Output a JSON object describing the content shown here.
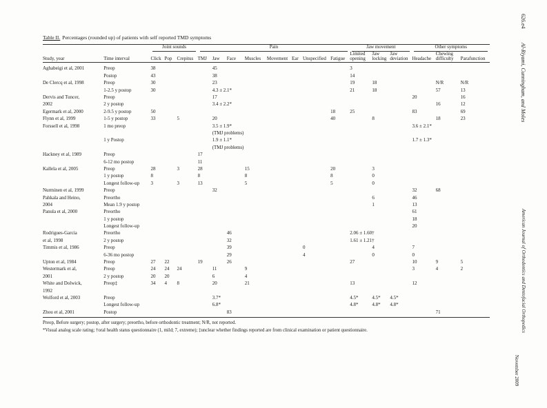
{
  "page": {
    "table_label": "Table II.",
    "table_caption": "Percentages (rounded up) of patients with self reported TMD symptoms"
  },
  "running_head": {
    "page_number": "626.e4",
    "authors": "Al-Riyami, Cunningham, and Moles"
  },
  "running_foot": {
    "journal": "American Journal of Orthodontics and Dentofacial Orthopedics",
    "issue": "November 2009"
  },
  "table": {
    "column_groups": [
      {
        "label": "Joint sounds",
        "span": 3
      },
      {
        "label": "Pain",
        "span": 8
      },
      {
        "label": "Jaw movement",
        "span": 3
      },
      {
        "label": "Other symptoms",
        "span": 3
      }
    ],
    "columns": [
      "Study, year",
      "Time interval",
      "Click",
      "Pop",
      "Crepitus",
      "TMJ",
      "Jaw",
      "Face",
      "Muscles",
      "Movement",
      "Ear",
      "Unspecified",
      "Fatigue",
      "Limited opening",
      "Jaw locking",
      "Jaw deviation",
      "Headache",
      "Chewing difficulty",
      "Parafunction"
    ],
    "rows": [
      {
        "study": "Aghabeigi et al, 2001",
        "indent": false,
        "time": "Preop",
        "cells": [
          "38",
          "",
          "",
          "",
          "45",
          "",
          "",
          "",
          "",
          "",
          "",
          "3",
          "",
          "",
          "",
          "",
          ""
        ]
      },
      {
        "study": "",
        "indent": false,
        "time": "Postop",
        "cells": [
          "43",
          "",
          "",
          "",
          "38",
          "",
          "",
          "",
          "",
          "",
          "",
          "14",
          "",
          "",
          "",
          "",
          ""
        ]
      },
      {
        "study": "De Clercq et al, 1998",
        "indent": false,
        "time": "Preop",
        "cells": [
          "30",
          "",
          "",
          "",
          "23",
          "",
          "",
          "",
          "",
          "",
          "",
          "19",
          "18",
          "",
          "",
          "N/R",
          "N/R"
        ]
      },
      {
        "study": "",
        "indent": false,
        "time": "1-2.5 y postop",
        "cells": [
          "30",
          "",
          "",
          "",
          "4.3 ± 2.1*",
          "",
          "",
          "",
          "",
          "",
          "",
          "21",
          "18",
          "",
          "",
          "57",
          "13"
        ]
      },
      {
        "study": "Dervis and Tuncer,",
        "indent": false,
        "time": "Preop",
        "cells": [
          "",
          "",
          "",
          "",
          "17",
          "",
          "",
          "",
          "",
          "",
          "",
          "",
          "",
          "",
          "20",
          "",
          "16"
        ]
      },
      {
        "study": "2002",
        "indent": true,
        "time": "2 y postop",
        "cells": [
          "",
          "",
          "",
          "",
          "3.4 ± 2.2*",
          "",
          "",
          "",
          "",
          "",
          "",
          "",
          "",
          "",
          "",
          "16",
          "12"
        ]
      },
      {
        "study": "Egermark et al, 2000",
        "indent": false,
        "time": "2-9.5 y postop",
        "cells": [
          "50",
          "",
          "",
          "",
          "",
          "",
          "",
          "",
          "",
          "",
          "18",
          "25",
          "",
          "",
          "83",
          "",
          "69"
        ]
      },
      {
        "study": "Flynn et al, 1999",
        "indent": false,
        "time": "1-5 y postop",
        "cells": [
          "33",
          "",
          "5",
          "",
          "20",
          "",
          "",
          "",
          "",
          "",
          "40",
          "",
          "8",
          "",
          "",
          "18",
          "23"
        ]
      },
      {
        "study": "Forssell et al, 1998",
        "indent": false,
        "time": "1 mo preop",
        "cells": [
          "",
          "",
          "",
          "",
          "3.5 ± 1.9*",
          "",
          "",
          "",
          "",
          "",
          "",
          "",
          "",
          "",
          "3.6 ± 2.1*",
          "",
          ""
        ]
      },
      {
        "study": "",
        "indent": false,
        "time": "",
        "cells": [
          "",
          "",
          "",
          "",
          "(TMJ problems)",
          "",
          "",
          "",
          "",
          "",
          "",
          "",
          "",
          "",
          "",
          "",
          ""
        ]
      },
      {
        "study": "",
        "indent": false,
        "time": "1 y Postop",
        "cells": [
          "",
          "",
          "",
          "",
          "1.9 ± 1.1*",
          "",
          "",
          "",
          "",
          "",
          "",
          "",
          "",
          "",
          "1.7 ± 1.3*",
          "",
          ""
        ]
      },
      {
        "study": "",
        "indent": false,
        "time": "",
        "cells": [
          "",
          "",
          "",
          "",
          "(TMJ problems)",
          "",
          "",
          "",
          "",
          "",
          "",
          "",
          "",
          "",
          "",
          "",
          ""
        ]
      },
      {
        "study": "Hackney et al, 1989",
        "indent": false,
        "time": "Preop",
        "cells": [
          "",
          "",
          "",
          "17",
          "",
          "",
          "",
          "",
          "",
          "",
          "",
          "",
          "",
          "",
          "",
          "",
          ""
        ]
      },
      {
        "study": "",
        "indent": false,
        "time": "6-12 mo postop",
        "cells": [
          "",
          "",
          "",
          "11",
          "",
          "",
          "",
          "",
          "",
          "",
          "",
          "",
          "",
          "",
          "",
          "",
          ""
        ]
      },
      {
        "study": "Kallela et al, 2005",
        "indent": false,
        "time": "Preop",
        "cells": [
          "28",
          "",
          "3",
          "28",
          "",
          "",
          "15",
          "",
          "",
          "",
          "20",
          "",
          "3",
          "",
          "",
          "",
          ""
        ]
      },
      {
        "study": "",
        "indent": false,
        "time": "1 y postop",
        "cells": [
          "8",
          "",
          "",
          "8",
          "",
          "",
          "8",
          "",
          "",
          "",
          "8",
          "",
          "0",
          "",
          "",
          "",
          ""
        ]
      },
      {
        "study": "",
        "indent": false,
        "time": "Longest follow-up",
        "cells": [
          "3",
          "",
          "3",
          "13",
          "",
          "",
          "5",
          "",
          "",
          "",
          "5",
          "",
          "0",
          "",
          "",
          "",
          ""
        ]
      },
      {
        "study": "Nurminen et al, 1999",
        "indent": false,
        "time": "Preop",
        "cells": [
          "",
          "",
          "",
          "",
          "32",
          "",
          "",
          "",
          "",
          "",
          "",
          "",
          "",
          "",
          "32",
          "68",
          ""
        ]
      },
      {
        "study": "Pahkala and Heino,",
        "indent": false,
        "time": "Preortho",
        "cells": [
          "",
          "",
          "",
          "",
          "",
          "",
          "",
          "",
          "",
          "",
          "",
          "",
          "6",
          "",
          "46",
          "",
          ""
        ]
      },
      {
        "study": "2004",
        "indent": true,
        "time": "Mean 1.9 y postop",
        "cells": [
          "",
          "",
          "",
          "",
          "",
          "",
          "",
          "",
          "",
          "",
          "",
          "",
          "1",
          "",
          "13",
          "",
          ""
        ]
      },
      {
        "study": "Panula et al, 2000",
        "indent": false,
        "time": "Preortho",
        "cells": [
          "",
          "",
          "",
          "",
          "",
          "",
          "",
          "",
          "",
          "",
          "",
          "",
          "",
          "",
          "61",
          "",
          ""
        ]
      },
      {
        "study": "",
        "indent": false,
        "time": "1 y postop",
        "cells": [
          "",
          "",
          "",
          "",
          "",
          "",
          "",
          "",
          "",
          "",
          "",
          "",
          "",
          "",
          "18",
          "",
          ""
        ]
      },
      {
        "study": "",
        "indent": false,
        "time": "Longest follow-up",
        "cells": [
          "",
          "",
          "",
          "",
          "",
          "",
          "",
          "",
          "",
          "",
          "",
          "",
          "",
          "",
          "20",
          "",
          ""
        ]
      },
      {
        "study": "Rodrigues-Garcia",
        "indent": false,
        "time": "Preortho",
        "cells": [
          "",
          "",
          "",
          "",
          "",
          "46",
          "",
          "",
          "",
          "",
          "",
          "2.06 ± 1.60†",
          "",
          "",
          "",
          "",
          ""
        ]
      },
      {
        "study": "et al, 1998",
        "indent": true,
        "time": "2 y postop",
        "cells": [
          "",
          "",
          "",
          "",
          "",
          "32",
          "",
          "",
          "",
          "",
          "",
          "1.61 ± 1.21†",
          "",
          "",
          "",
          "",
          ""
        ]
      },
      {
        "study": "Timmis et al, 1986",
        "indent": false,
        "time": "Preop",
        "cells": [
          "",
          "",
          "",
          "",
          "",
          "39",
          "",
          "",
          "",
          "0",
          "",
          "",
          "4",
          "",
          "7",
          "",
          ""
        ]
      },
      {
        "study": "",
        "indent": false,
        "time": "6-36 mo postop",
        "cells": [
          "",
          "",
          "",
          "",
          "",
          "29",
          "",
          "",
          "",
          "4",
          "",
          "",
          "0",
          "",
          "0",
          "",
          ""
        ]
      },
      {
        "study": "Upton et al, 1984",
        "indent": false,
        "time": "Preop",
        "cells": [
          "27",
          "22",
          "",
          "19",
          "",
          "26",
          "",
          "",
          "",
          "",
          "",
          "27",
          "",
          "",
          "10",
          "9",
          "5"
        ]
      },
      {
        "study": "Westermark et al,",
        "indent": false,
        "time": "Preop",
        "cells": [
          "24",
          "24",
          "24",
          "",
          "11",
          "",
          "9",
          "",
          "",
          "",
          "",
          "",
          "",
          "",
          "3",
          "4",
          "2"
        ]
      },
      {
        "study": "2001",
        "indent": true,
        "time": "2 y postop",
        "cells": [
          "20",
          "20",
          "",
          "",
          "6",
          "",
          "4",
          "",
          "",
          "",
          "",
          "",
          "",
          "",
          "",
          "",
          ""
        ]
      },
      {
        "study": "White and Dolwick,",
        "indent": false,
        "time": "Preop‡",
        "cells": [
          "34",
          "4",
          "8",
          "",
          "20",
          "",
          "21",
          "",
          "",
          "",
          "",
          "13",
          "",
          "",
          "12",
          "",
          ""
        ]
      },
      {
        "study": "1992",
        "indent": true,
        "time": "",
        "cells": [
          "",
          "",
          "",
          "",
          "",
          "",
          "",
          "",
          "",
          "",
          "",
          "",
          "",
          "",
          "",
          "",
          ""
        ]
      },
      {
        "study": "Wolford et al, 2003",
        "indent": false,
        "time": "Preop",
        "cells": [
          "",
          "",
          "",
          "",
          "3.7*",
          "",
          "",
          "",
          "",
          "",
          "",
          "4.5*",
          "4.5*",
          "4.5*",
          "",
          "",
          ""
        ]
      },
      {
        "study": "",
        "indent": false,
        "time": "Longest follow-up",
        "cells": [
          "",
          "",
          "",
          "",
          "6.8*",
          "",
          "",
          "",
          "",
          "",
          "",
          "4.8*",
          "4.8*",
          "4.8*",
          "",
          "",
          ""
        ]
      },
      {
        "study": "Zhou et al, 2001",
        "indent": false,
        "time": "Postop",
        "cells": [
          "",
          "",
          "",
          "",
          "",
          "83",
          "",
          "",
          "",
          "",
          "",
          "",
          "",
          "",
          "",
          "71",
          ""
        ]
      }
    ]
  },
  "footnotes": [
    "Preop, Before surgery; postop, after surgery; preortho, before orthodontic treatment; N/R, not reported.",
    "*Visual analog scale rating; †oral health status questionnaire (1, mild; 7, extreme); ‡unclear whether findings reported are from clinical examination or patient questionnaire."
  ]
}
